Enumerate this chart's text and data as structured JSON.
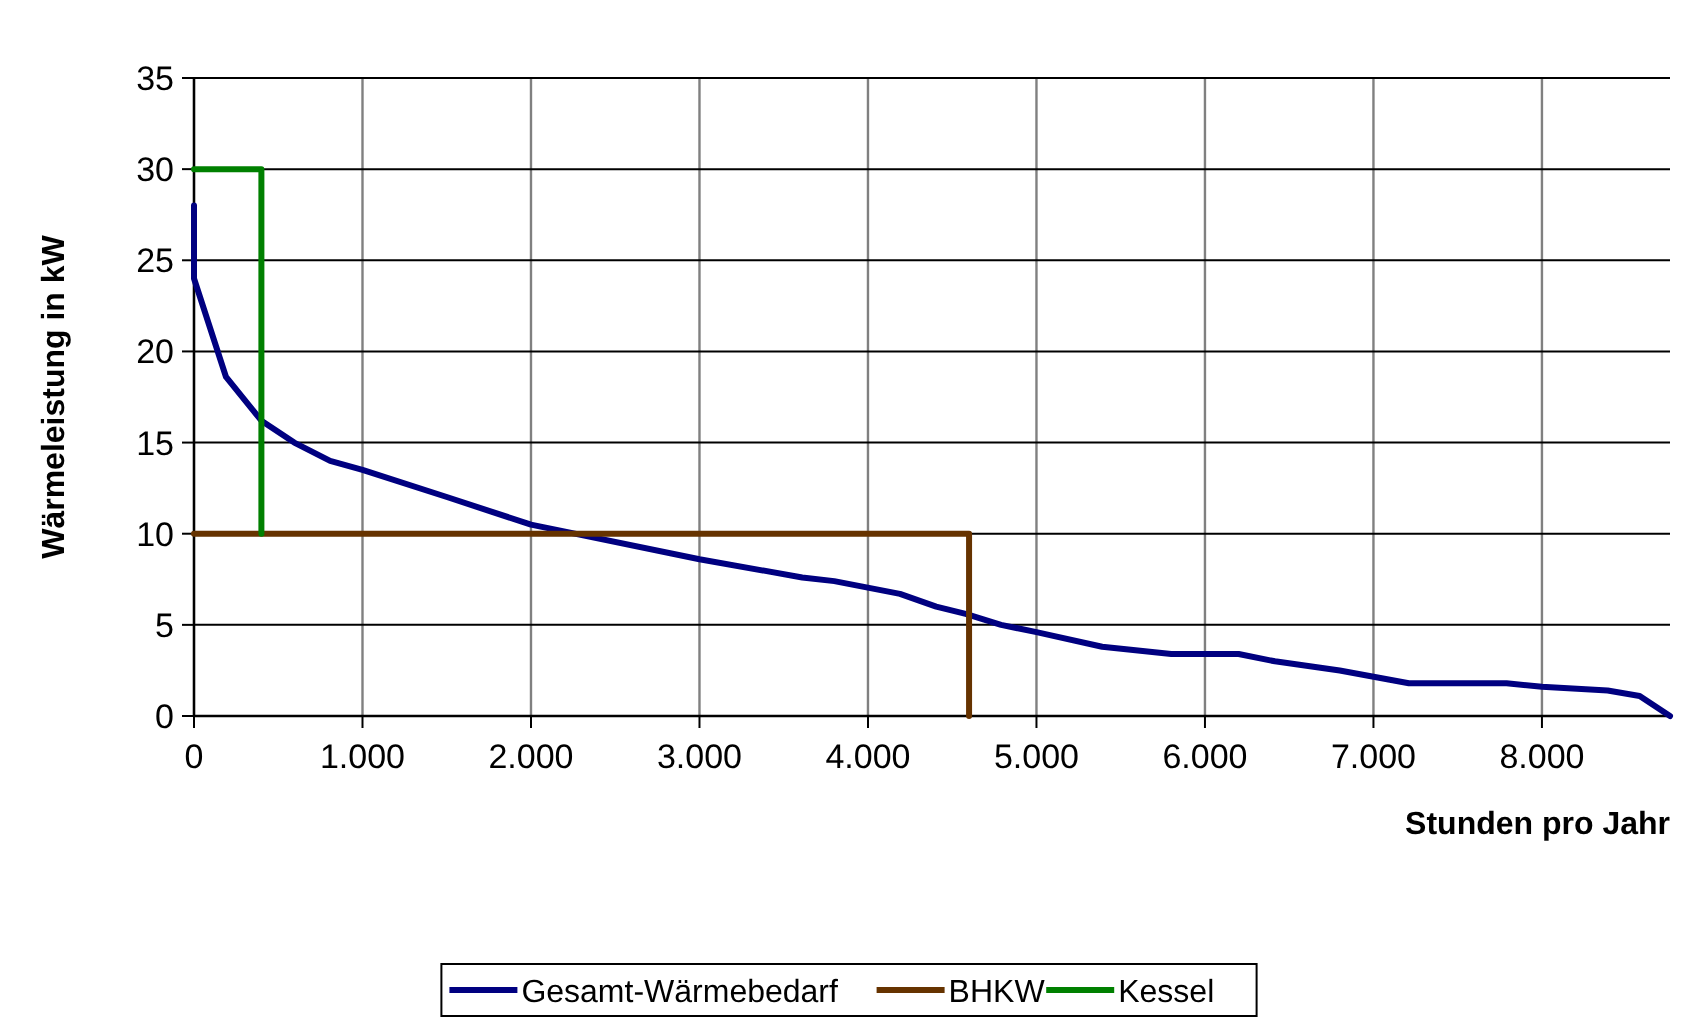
{
  "chart_data": {
    "type": "line",
    "xlabel": "Stunden pro Jahr",
    "ylabel": "Wärmeleistung in kW",
    "xlim": [
      0,
      8760
    ],
    "ylim": [
      0,
      35
    ],
    "xticks": [
      0,
      {
        "value": 1000,
        "label": "1.000"
      },
      {
        "value": 2000,
        "label": "2.000"
      },
      {
        "value": 3000,
        "label": "3.000"
      },
      {
        "value": 4000,
        "label": "4.000"
      },
      {
        "value": 5000,
        "label": "5.000"
      },
      {
        "value": 6000,
        "label": "6.000"
      },
      {
        "value": 7000,
        "label": "7.000"
      },
      {
        "value": 8000,
        "label": "8.000"
      }
    ],
    "yticks": [
      0,
      5,
      10,
      15,
      20,
      25,
      30,
      35
    ],
    "grid": true,
    "legend": "bottom",
    "marker": "none",
    "line_style": "solid",
    "series": [
      {
        "name": "Gesamt-Wärmebedarf",
        "color": "#000080",
        "x": [
          0,
          0,
          190,
          400,
          595,
          808,
          1000,
          1505,
          2000,
          3000,
          3610,
          3800,
          4190,
          4405,
          4580,
          4790,
          5000,
          5390,
          5800,
          6200,
          6415,
          6800,
          7210,
          7790,
          8000,
          8390,
          8580,
          8760
        ],
        "values": [
          28,
          24,
          18.6,
          16.2,
          15,
          14,
          13.5,
          12,
          10.5,
          8.6,
          7.6,
          7.4,
          6.7,
          6,
          5.6,
          5,
          4.6,
          3.8,
          3.4,
          3.4,
          3,
          2.5,
          1.8,
          1.8,
          1.6,
          1.4,
          1.1,
          0
        ]
      },
      {
        "name": "BHKW",
        "color": "#663300",
        "x": [
          0,
          4600,
          4600
        ],
        "values": [
          10,
          10,
          0
        ]
      },
      {
        "name": "Kessel",
        "color": "#008000",
        "x": [
          0,
          400,
          400
        ],
        "values": [
          30,
          30,
          10
        ]
      }
    ]
  }
}
